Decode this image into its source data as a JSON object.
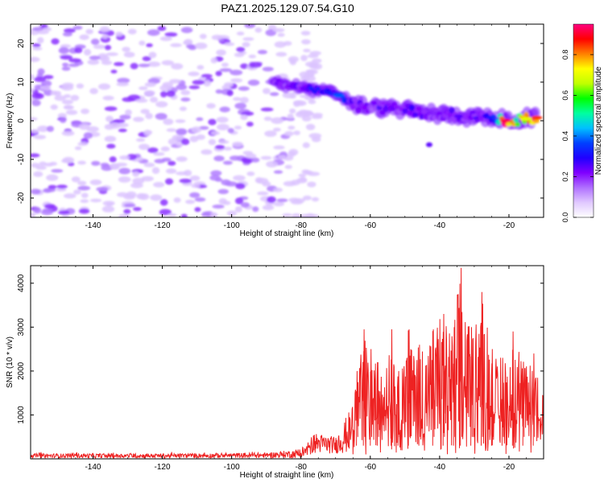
{
  "title": "PAZ1.2025.129.07.54.G10",
  "chart_data": [
    {
      "type": "heatmap",
      "xlabel": "Height of straight line (km)",
      "ylabel": "Frequency (Hz)",
      "xlim": [
        -158,
        -10
      ],
      "ylim": [
        -25,
        25
      ],
      "xticks": [
        -140,
        -120,
        -100,
        -80,
        -60,
        -40,
        -20
      ],
      "yticks": [
        -20,
        -10,
        0,
        10,
        20
      ],
      "colorbar": {
        "label": "Normalized spectral amplitude",
        "range": [
          0,
          0.95
        ],
        "ticks": [
          0,
          0.2,
          0.4,
          0.6,
          0.8
        ],
        "colormap": [
          "#ffffff",
          "#e0c8ff",
          "#b070ff",
          "#8000ff",
          "#2000ff",
          "#0040ff",
          "#00c0ff",
          "#00ffa0",
          "#00ff00",
          "#c0ff00",
          "#ffff00",
          "#ff8000",
          "#ff0000",
          "#ff0080"
        ]
      },
      "ridge": [
        {
          "x": -88,
          "y": 10.0,
          "amp": 0.2
        },
        {
          "x": -84,
          "y": 9.3,
          "amp": 0.18
        },
        {
          "x": -80,
          "y": 8.8,
          "amp": 0.2
        },
        {
          "x": -76,
          "y": 8.0,
          "amp": 0.28
        },
        {
          "x": -72,
          "y": 7.5,
          "amp": 0.25
        },
        {
          "x": -69,
          "y": 6.5,
          "amp": 0.35
        },
        {
          "x": -66,
          "y": 5.0,
          "amp": 0.22
        },
        {
          "x": -63,
          "y": 3.8,
          "amp": 0.2
        },
        {
          "x": -60,
          "y": 3.2,
          "amp": 0.18
        },
        {
          "x": -56,
          "y": 3.4,
          "amp": 0.22
        },
        {
          "x": -52,
          "y": 3.0,
          "amp": 0.2
        },
        {
          "x": -48,
          "y": 2.5,
          "amp": 0.22
        },
        {
          "x": -44,
          "y": 2.0,
          "amp": 0.2
        },
        {
          "x": -40,
          "y": 1.8,
          "amp": 0.18
        },
        {
          "x": -36,
          "y": 1.5,
          "amp": 0.22
        },
        {
          "x": -32,
          "y": 1.2,
          "amp": 0.2
        },
        {
          "x": -28,
          "y": 1.0,
          "amp": 0.22
        },
        {
          "x": -24,
          "y": 0.5,
          "amp": 0.3
        },
        {
          "x": -21,
          "y": 0.0,
          "amp": 0.92
        },
        {
          "x": -18,
          "y": 0.0,
          "amp": 0.55
        },
        {
          "x": -15,
          "y": 0.5,
          "amp": 0.75
        },
        {
          "x": -12,
          "y": 0.8,
          "amp": 0.85
        }
      ],
      "noise_region": {
        "x": [
          -158,
          -78
        ],
        "y": [
          -25,
          25
        ],
        "amp_max": 0.07
      }
    },
    {
      "type": "line",
      "xlabel": "Height of straight line (km)",
      "ylabel": "SNR (10 * v/v)",
      "xlim": [
        -158,
        -10
      ],
      "ylim": [
        0,
        4400
      ],
      "xticks": [
        -140,
        -120,
        -100,
        -80,
        -60,
        -40,
        -20
      ],
      "yticks": [
        1000,
        2000,
        3000,
        4000
      ],
      "series": [
        {
          "color": "#ee2222",
          "envelope": [
            {
              "x": -158,
              "y": 120
            },
            {
              "x": -120,
              "y": 120
            },
            {
              "x": -90,
              "y": 140
            },
            {
              "x": -80,
              "y": 220
            },
            {
              "x": -76,
              "y": 600
            },
            {
              "x": -70,
              "y": 500
            },
            {
              "x": -66,
              "y": 1100
            },
            {
              "x": -64,
              "y": 2000
            },
            {
              "x": -62,
              "y": 2950
            },
            {
              "x": -60,
              "y": 2500
            },
            {
              "x": -58,
              "y": 2200
            },
            {
              "x": -54,
              "y": 2950
            },
            {
              "x": -52,
              "y": 2000
            },
            {
              "x": -49,
              "y": 2950
            },
            {
              "x": -46,
              "y": 2600
            },
            {
              "x": -42,
              "y": 2950
            },
            {
              "x": -39,
              "y": 3300
            },
            {
              "x": -36,
              "y": 3000
            },
            {
              "x": -34,
              "y": 4350
            },
            {
              "x": -31,
              "y": 3000
            },
            {
              "x": -28,
              "y": 3800
            },
            {
              "x": -25,
              "y": 2500
            },
            {
              "x": -22,
              "y": 2300
            },
            {
              "x": -19,
              "y": 2900
            },
            {
              "x": -16,
              "y": 2200
            },
            {
              "x": -13,
              "y": 2400
            },
            {
              "x": -10,
              "y": 1700
            }
          ]
        }
      ]
    }
  ]
}
